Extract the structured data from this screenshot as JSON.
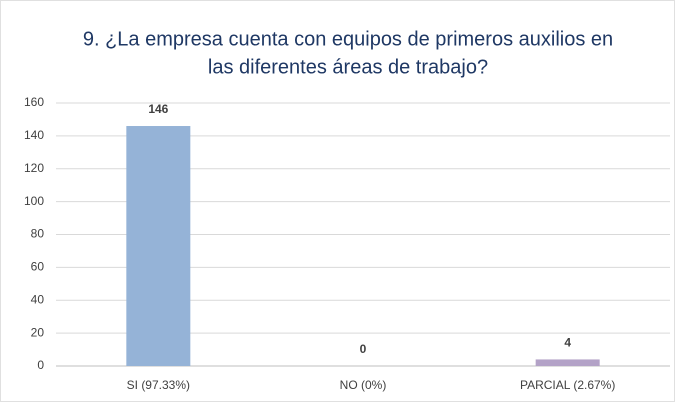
{
  "chart_data": {
    "type": "bar",
    "title": [
      "9. ¿La empresa cuenta con equipos de primeros auxilios en",
      "las diferentes áreas de trabajo?"
    ],
    "categories": [
      "SI (97.33%)",
      "NO (0%)",
      "PARCIAL (2.67%)"
    ],
    "values": [
      146,
      0,
      4
    ],
    "colors": [
      "#95b3d7",
      "#9bbb59",
      "#b3a2c7"
    ],
    "ylim": [
      0,
      160
    ],
    "yticks": [
      0,
      20,
      40,
      60,
      80,
      100,
      120,
      140,
      160
    ],
    "grid": true
  }
}
